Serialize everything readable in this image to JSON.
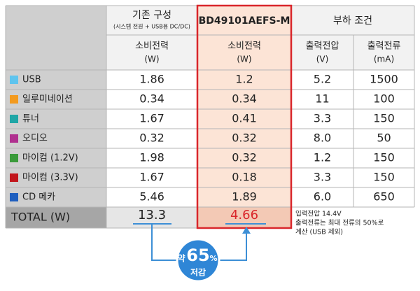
{
  "table": {
    "header": {
      "current": {
        "title": "기존 구성",
        "subtitle": "(시스템 전원 + USB용 DC/DC)"
      },
      "product": "BD49101AEFS-M",
      "load": "부하 조건"
    },
    "subheader": [
      [
        "소비전력",
        "(W)"
      ],
      [
        "소비전력",
        "(W)"
      ],
      [
        "출력전압",
        "(V)"
      ],
      [
        "출력전류",
        "(mA)"
      ]
    ],
    "rows": [
      {
        "label": "USB",
        "color": "#5ec4ee",
        "values": [
          "1.86",
          "1.2",
          "5.2",
          "1500"
        ]
      },
      {
        "label": "일루미네이션",
        "color": "#f39a1e",
        "values": [
          "0.34",
          "0.34",
          "11",
          "100"
        ]
      },
      {
        "label": "튜너",
        "color": "#1fa6a6",
        "values": [
          "1.67",
          "0.41",
          "3.3",
          "150"
        ]
      },
      {
        "label": "오디오",
        "color": "#b0308f",
        "values": [
          "0.32",
          "0.32",
          "8.0",
          "50"
        ]
      },
      {
        "label": "마이컴 (1.2V)",
        "color": "#3a9a3a",
        "values": [
          "1.98",
          "0.32",
          "1.2",
          "150"
        ]
      },
      {
        "label": "마이컴 (3.3V)",
        "color": "#c2161c",
        "values": [
          "1.67",
          "0.18",
          "3.3",
          "150"
        ]
      },
      {
        "label": "CD 메카",
        "color": "#1f5fbf",
        "values": [
          "5.46",
          "1.89",
          "6.0",
          "650"
        ]
      }
    ],
    "total": {
      "label": "TOTAL (W)",
      "values": [
        "13.3",
        "4.66"
      ]
    }
  },
  "note": [
    "입력전압 14.4V",
    "출력전류는 최대 전류의 50%로",
    "계산 (USB 제외)"
  ],
  "badge": {
    "prefix": "약",
    "value": "65",
    "unit": "%",
    "suffix": "저감"
  }
}
